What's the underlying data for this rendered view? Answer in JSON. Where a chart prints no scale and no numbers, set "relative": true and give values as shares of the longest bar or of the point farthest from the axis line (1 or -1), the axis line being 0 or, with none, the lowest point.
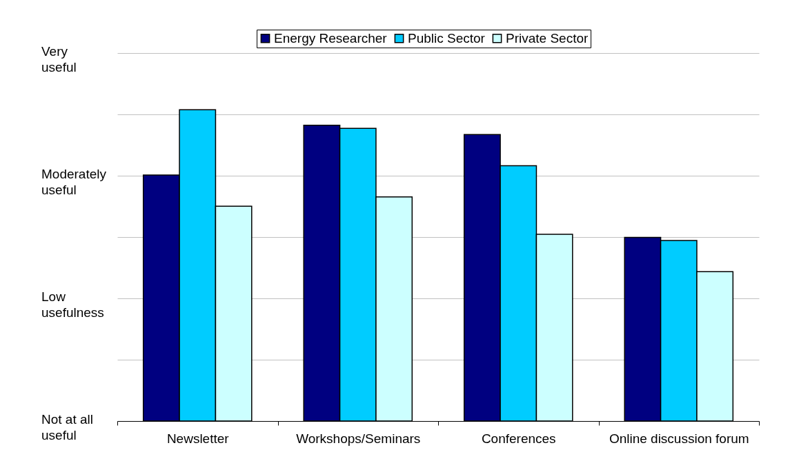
{
  "chart_data": {
    "type": "bar",
    "relative": true,
    "categories": [
      "Newsletter",
      "Workshops/Seminars",
      "Conferences",
      "Online discussion forum"
    ],
    "series": [
      {
        "name": "Energy Researcher",
        "color": "#000080",
        "values": [
          0.79,
          0.95,
          0.92,
          0.59
        ]
      },
      {
        "name": "Public Sector",
        "color": "#00ccff",
        "values": [
          1,
          0.94,
          0.82,
          0.58
        ]
      },
      {
        "name": "Private Sector",
        "color": "#ccffff",
        "values": [
          0.69,
          0.72,
          0.6,
          0.48
        ]
      }
    ],
    "annotations": [
      "Very useful",
      "Moderately useful",
      "Low usefulness",
      "Not at all useful"
    ],
    "grid": "y",
    "legend": "top"
  }
}
